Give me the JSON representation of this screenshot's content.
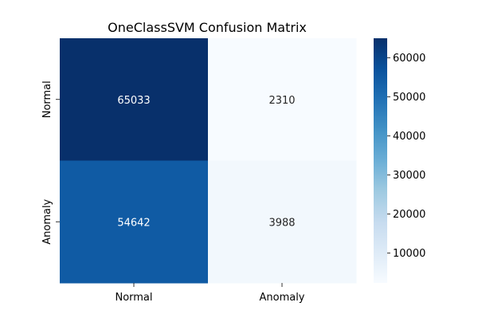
{
  "chart_data": {
    "type": "heatmap",
    "title": "OneClassSVM Confusion Matrix",
    "xlabel": "",
    "ylabel": "",
    "x_categories": [
      "Normal",
      "Anomaly"
    ],
    "y_categories": [
      "Normal",
      "Anomaly"
    ],
    "values": [
      [
        65033,
        2310
      ],
      [
        54642,
        3988
      ]
    ],
    "colormap": "Blues",
    "colorbar": {
      "range": [
        2310,
        65033
      ],
      "ticks": [
        10000,
        20000,
        30000,
        40000,
        50000,
        60000
      ],
      "tick_labels": [
        "10000",
        "20000",
        "30000",
        "40000",
        "50000",
        "60000"
      ]
    },
    "annotations": true,
    "grid": false
  }
}
